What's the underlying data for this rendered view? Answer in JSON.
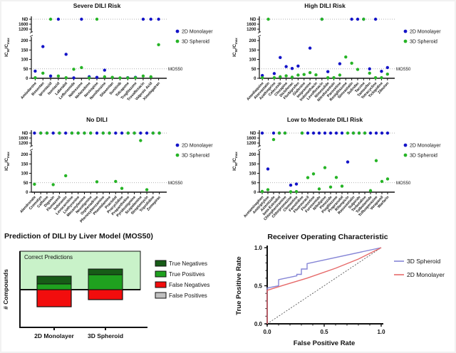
{
  "figure_title": "DILI prediction figure",
  "colors": {
    "monolayer_dot": "#1414c8",
    "spheroid_dot": "#26b426",
    "roc_spheroid_line": "#8585d6",
    "roc_monolayer_line": "#e66a6a",
    "true_negatives": "#175c17",
    "true_positives": "#1fa11f",
    "false_negatives": "#f20d0d",
    "false_positives": "#bfbfbf",
    "correct_region_fill": "#c9f2c9",
    "dotted_line": "#999999",
    "mos_label": "#555555"
  },
  "scatter_common": {
    "ylabel_parts": [
      "IC",
      "50",
      "/C",
      "max"
    ],
    "yticks": [
      "ND",
      "1600",
      "1200",
      "200",
      "150",
      "100",
      "50",
      "0"
    ],
    "mos_line_label": "MOS50",
    "legend": [
      "2D Monolayer",
      "3D Spheroid"
    ]
  },
  "chart_data": [
    {
      "type": "scatter",
      "title": "Severe DILI Risk",
      "ylabel": "IC50/Cmax",
      "mos_threshold": 50,
      "categories": [
        "Amiodarone",
        "Bosentan",
        "Iproniazid",
        "Isoniazid",
        "Labetalol",
        "Leflunomide",
        "Naltrexone",
        "Nefazodone",
        "Nevirapine",
        "Nomifensine",
        "Sitaxentan",
        "Sunitinib",
        "Tolcapone",
        "Troglitazone",
        "Trovafloxacin",
        "Valproic Acid",
        "Ximelagatran"
      ],
      "series": [
        {
          "name": "2D Monolayer",
          "values": [
            38,
            168,
            12,
            "ND",
            127,
            2,
            "ND",
            8,
            5,
            43,
            null,
            null,
            3,
            5,
            "ND",
            "ND",
            "ND"
          ]
        },
        {
          "name": "3D Spheroid",
          "values": [
            3,
            27,
            "ND",
            12,
            3,
            48,
            57,
            2,
            "ND",
            8,
            5,
            2,
            2,
            3,
            12,
            8,
            178
          ]
        }
      ]
    },
    {
      "type": "scatter",
      "title": "High DILI Risk",
      "ylabel": "IC50/Cmax",
      "mos_threshold": 50,
      "categories": [
        "Amodiaquine",
        "Atorvastatin",
        "Azathioprine",
        "Celecoxib",
        "Clozapine",
        "Diclofenac",
        "Flurbiprofen",
        "Glafenine",
        "Imipramine",
        "Indomethacin",
        "Levofloxacin",
        "Nimesulide",
        "Nitrofurantoin",
        "Paroxetine",
        "Rosiglitazone",
        "Simvastatin",
        "Sulindac",
        "Tacrine",
        "Tamoxifen",
        "Tetracycline",
        "Ticlopidine",
        "Zileuton"
      ],
      "series": [
        {
          "name": "2D Monolayer",
          "values": [
            15,
            null,
            25,
            110,
            62,
            52,
            65,
            null,
            160,
            null,
            "ND",
            35,
            null,
            77,
            null,
            "ND",
            "ND",
            "ND",
            50,
            "ND",
            37,
            57
          ]
        },
        {
          "name": "3D Spheroid",
          "values": [
            3,
            "ND",
            3,
            8,
            13,
            6,
            17,
            20,
            30,
            18,
            "ND",
            3,
            3,
            17,
            113,
            80,
            47,
            "ND",
            27,
            3,
            3,
            22
          ]
        }
      ]
    },
    {
      "type": "scatter",
      "title": "No DILI",
      "ylabel": "IC50/Cmax",
      "mos_threshold": 50,
      "categories": [
        "Alendronate",
        "Cromolyn",
        "Caffeine",
        "Digoxin",
        "Flumazenil",
        "Indoramin",
        "Levocarnitine",
        "Liothyronine",
        "Mecamylamine",
        "Neostigmine",
        "Orphenadrine",
        "Phenoxybenzamine",
        "Phentolamine",
        "Practolol",
        "Procyclidine",
        "Propantheline",
        "Pyridostigmine",
        "Scopolamine",
        "Streptomycin",
        "Triprolidine",
        "Zomepirac"
      ],
      "series": [
        {
          "name": "2D Monolayer",
          "values": [
            "ND",
            "ND",
            "ND",
            "ND",
            "ND",
            "ND",
            "ND",
            "ND",
            "ND",
            "ND",
            "ND",
            "ND",
            "ND",
            "ND",
            "ND",
            "ND",
            "ND",
            "ND",
            "ND",
            "ND",
            "ND"
          ]
        },
        {
          "name": "3D Spheroid",
          "values": [
            42,
            "ND",
            "ND",
            40,
            "ND",
            87,
            "ND",
            "ND",
            "ND",
            "ND",
            55,
            "ND",
            "ND",
            57,
            20,
            "ND",
            "ND",
            1400,
            13,
            "ND",
            "ND"
          ]
        }
      ]
    },
    {
      "type": "scatter",
      "title": "Low to Moderate DILI Risk",
      "ylabel": "IC50/Cmax",
      "mos_threshold": 50,
      "categories": [
        "Acetaminophen",
        "Amitriptyline",
        "Astemizole",
        "beta-Estradiol",
        "Chlorpheniramine",
        "Chlorpromazine",
        "Clemastine",
        "Famotidine",
        "Fluorouracil",
        "Fluoxetine",
        "Furosemide",
        "Nifedipine",
        "Pimozide",
        "Pioglitazone",
        "Propranolol",
        "Rifampicin",
        "Rosuvastatin",
        "Sulpiride",
        "Terbutaline",
        "Tolbutamide",
        "Trifluoperazine",
        "Verapamil",
        "Warfarin"
      ],
      "series": [
        {
          "name": "2D Monolayer",
          "values": [
            "ND",
            123,
            "ND",
            "ND",
            "ND",
            37,
            43,
            "ND",
            "ND",
            "ND",
            "ND",
            "ND",
            "ND",
            "ND",
            "ND",
            160,
            "ND",
            "ND",
            "ND",
            "ND",
            "ND",
            "ND",
            "ND"
          ]
        },
        {
          "name": "3D Spheroid",
          "values": [
            4,
            13,
            1480,
            "ND",
            "ND",
            2,
            3,
            "ND",
            77,
            97,
            17,
            130,
            27,
            78,
            32,
            "ND",
            "ND",
            "ND",
            "ND",
            8,
            167,
            57,
            70
          ]
        }
      ]
    },
    {
      "type": "bar",
      "title": "Prediction of DILI by Liver Model (MOS50)",
      "ylabel": "# Compounds",
      "region_label": "Correct Predictions",
      "categories": [
        "2D Monolayer",
        "3D Spheroid"
      ],
      "series": [
        {
          "name": "True Negatives",
          "values": [
            11,
            8
          ]
        },
        {
          "name": "True Positives",
          "values": [
            8,
            21
          ]
        },
        {
          "name": "False Negatives",
          "values": [
            24,
            14
          ]
        },
        {
          "name": "False Positives",
          "values": [
            0,
            0
          ]
        }
      ]
    },
    {
      "type": "line",
      "title": "Receiver Operating Characteristic",
      "xlabel": "False Positive Rate",
      "ylabel": "True Positive Rate",
      "xlim": [
        0,
        1
      ],
      "ylim": [
        0,
        1
      ],
      "xticks": [
        "0.0",
        "0.5",
        "1.0"
      ],
      "yticks": [
        "0.0",
        "0.5",
        "1.0"
      ],
      "diagonal_reference": true,
      "series": [
        {
          "name": "3D Spheroid",
          "points": [
            [
              0,
              0
            ],
            [
              0,
              0.47
            ],
            [
              0.1,
              0.5
            ],
            [
              0.1,
              0.58
            ],
            [
              0.26,
              0.63
            ],
            [
              0.26,
              0.65
            ],
            [
              0.3,
              0.65
            ],
            [
              0.3,
              0.72
            ],
            [
              0.35,
              0.72
            ],
            [
              0.35,
              0.79
            ],
            [
              1,
              1
            ]
          ]
        },
        {
          "name": "2D Monolayer",
          "points": [
            [
              0,
              0
            ],
            [
              0,
              0.44
            ],
            [
              0.15,
              0.51
            ],
            [
              0.35,
              0.6
            ],
            [
              0.6,
              0.73
            ],
            [
              0.8,
              0.85
            ],
            [
              1,
              1
            ]
          ]
        }
      ]
    }
  ]
}
